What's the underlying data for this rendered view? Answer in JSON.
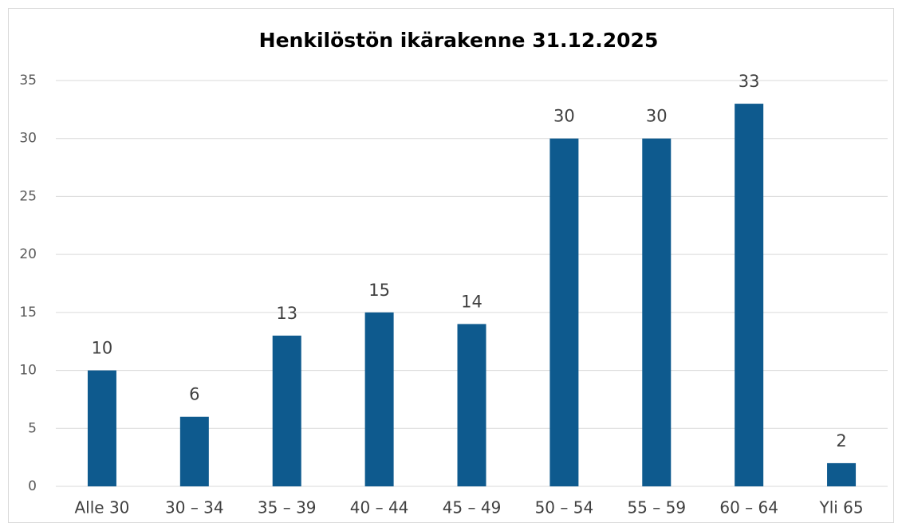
{
  "chart_data": {
    "type": "bar",
    "title": "Henkilöstön ikärakenne 31.12.2025",
    "categories": [
      "Alle 30",
      "30 – 34",
      "35 – 39",
      "40 – 44",
      "45 – 49",
      "50 – 54",
      "55 – 59",
      "60 – 64",
      "Yli 65"
    ],
    "values": [
      10,
      6,
      13,
      15,
      14,
      30,
      30,
      33,
      2
    ],
    "color": "#0e5a8e",
    "ylim": [
      0,
      35
    ],
    "yticks": [
      0,
      5,
      10,
      15,
      20,
      25,
      30,
      35
    ],
    "grid": true,
    "data_labels": true
  }
}
